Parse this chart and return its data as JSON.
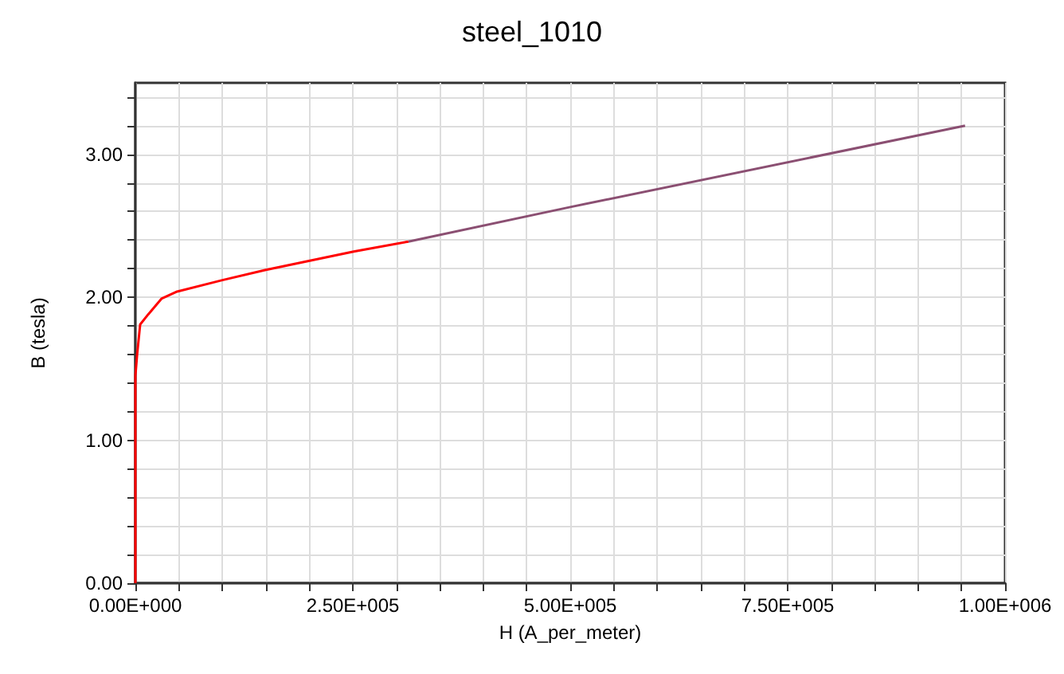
{
  "chart_data": {
    "type": "line",
    "title": "steel_1010",
    "xlabel": "H (A_per_meter)",
    "ylabel": "B (tesla)",
    "series": [
      {
        "color": "#ff0000",
        "x": [
          0,
          0,
          2000,
          5500,
          14700,
          30000,
          48000,
          100000,
          149000,
          251000,
          314000
        ],
        "values": [
          0,
          1.45,
          1.6,
          1.81,
          1.88,
          1.99,
          2.04,
          2.12,
          2.19,
          2.32,
          2.39
        ]
      },
      {
        "color": "#8b4f72",
        "x": [
          314000,
          499000,
          954000
        ],
        "values": [
          2.39,
          2.63,
          3.2
        ]
      }
    ],
    "xlim": [
      0,
      1000000
    ],
    "ylim": [
      0,
      3.5
    ],
    "xticks": [
      {
        "value": 0,
        "label": "0.00E+000"
      },
      {
        "value": 50000,
        "label": null
      },
      {
        "value": 100000,
        "label": null
      },
      {
        "value": 150000,
        "label": null
      },
      {
        "value": 200000,
        "label": null
      },
      {
        "value": 250000,
        "label": "2.50E+005"
      },
      {
        "value": 300000,
        "label": null
      },
      {
        "value": 350000,
        "label": null
      },
      {
        "value": 400000,
        "label": null
      },
      {
        "value": 450000,
        "label": null
      },
      {
        "value": 500000,
        "label": "5.00E+005"
      },
      {
        "value": 550000,
        "label": null
      },
      {
        "value": 600000,
        "label": null
      },
      {
        "value": 650000,
        "label": null
      },
      {
        "value": 700000,
        "label": null
      },
      {
        "value": 750000,
        "label": "7.50E+005"
      },
      {
        "value": 800000,
        "label": null
      },
      {
        "value": 850000,
        "label": null
      },
      {
        "value": 900000,
        "label": null
      },
      {
        "value": 950000,
        "label": null
      },
      {
        "value": 1000000,
        "label": "1.00E+006"
      }
    ],
    "yticks": [
      {
        "value": 0,
        "label": "0.00"
      },
      {
        "value": 0.2,
        "label": null
      },
      {
        "value": 0.4,
        "label": null
      },
      {
        "value": 0.6,
        "label": null
      },
      {
        "value": 0.8,
        "label": null
      },
      {
        "value": 1,
        "label": "1.00"
      },
      {
        "value": 1.2,
        "label": null
      },
      {
        "value": 1.4,
        "label": null
      },
      {
        "value": 1.6,
        "label": null
      },
      {
        "value": 1.8,
        "label": null
      },
      {
        "value": 2,
        "label": "2.00"
      },
      {
        "value": 2.2,
        "label": null
      },
      {
        "value": 2.4,
        "label": null
      },
      {
        "value": 2.6,
        "label": null
      },
      {
        "value": 2.8,
        "label": null
      },
      {
        "value": 3,
        "label": "3.00"
      },
      {
        "value": 3.2,
        "label": null
      },
      {
        "value": 3.4,
        "label": null
      }
    ],
    "grid": true,
    "marker": "none",
    "line_style": "solid"
  }
}
